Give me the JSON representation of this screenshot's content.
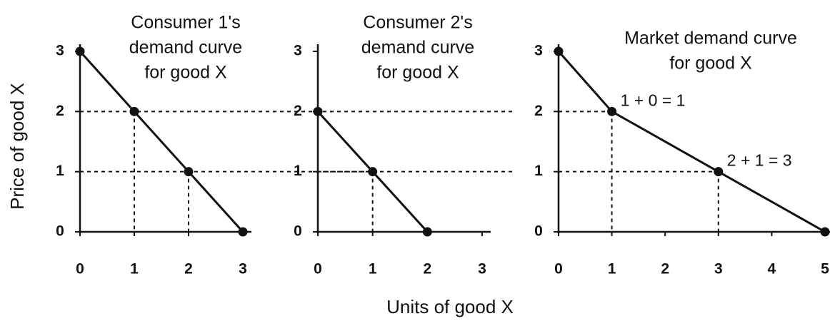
{
  "labels": {
    "ylabel": "Price of good X",
    "xlabel": "Units of good X"
  },
  "chart_data": [
    {
      "type": "line",
      "title": [
        "Consumer 1's",
        "demand curve",
        "for good X"
      ],
      "x": [
        0,
        1,
        2,
        3
      ],
      "series": [
        {
          "color": "#111111",
          "values": [
            3,
            2,
            1,
            0
          ]
        }
      ],
      "xlim": [
        0,
        3
      ],
      "xticks": [
        0,
        1,
        2,
        3
      ],
      "ylim": [
        0,
        3
      ],
      "yticks": [
        0,
        1,
        2,
        3
      ]
    },
    {
      "type": "line",
      "title": [
        "Consumer 2's",
        "demand curve",
        "for good X"
      ],
      "x": [
        0,
        1,
        2
      ],
      "series": [
        {
          "color": "#111111",
          "values": [
            2,
            1,
            0
          ]
        }
      ],
      "xlim": [
        0,
        3
      ],
      "xticks": [
        0,
        1,
        2,
        3
      ],
      "ylim": [
        0,
        3
      ],
      "yticks": [
        0,
        1,
        2,
        3
      ]
    },
    {
      "type": "line",
      "title": [
        "Market demand curve",
        "for good X"
      ],
      "x": [
        0,
        1,
        3,
        5
      ],
      "series": [
        {
          "color": "#111111",
          "values": [
            3,
            2,
            1,
            0
          ]
        }
      ],
      "xlim": [
        0,
        5
      ],
      "xticks": [
        0,
        1,
        2,
        3,
        4,
        5
      ],
      "ylim": [
        0,
        3
      ],
      "yticks": [
        0,
        1,
        2,
        3
      ],
      "annotations": [
        {
          "text": "1 + 0 = 1",
          "x": 1,
          "y": 2
        },
        {
          "text": "2 + 1 = 3",
          "x": 3,
          "y": 1
        }
      ]
    }
  ]
}
